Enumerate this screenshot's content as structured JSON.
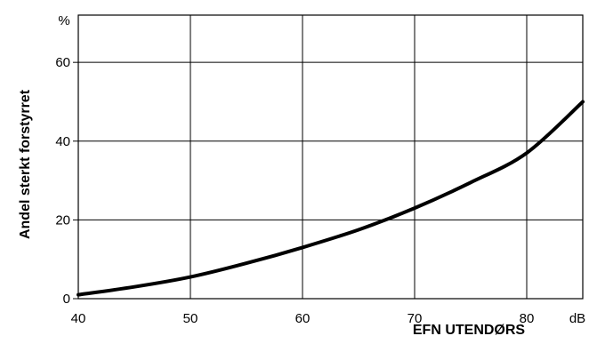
{
  "chart_data": {
    "type": "line",
    "title": "",
    "xlabel": "EFN UTENDØRS",
    "ylabel": "Andel sterkt forstyrret",
    "x_unit": "dB",
    "y_unit": "%",
    "xlim": [
      40,
      85
    ],
    "ylim": [
      0,
      72
    ],
    "x_ticks": [
      40,
      50,
      60,
      70,
      80
    ],
    "y_ticks": [
      0,
      20,
      40,
      60
    ],
    "grid": true,
    "legend": "none",
    "series": [
      {
        "x": [
          40,
          45,
          50,
          55,
          60,
          65,
          70,
          75,
          80,
          85
        ],
        "y": [
          1,
          3,
          5.5,
          9,
          13,
          17.5,
          23,
          29.5,
          37,
          50
        ],
        "color": "#000000"
      }
    ]
  }
}
